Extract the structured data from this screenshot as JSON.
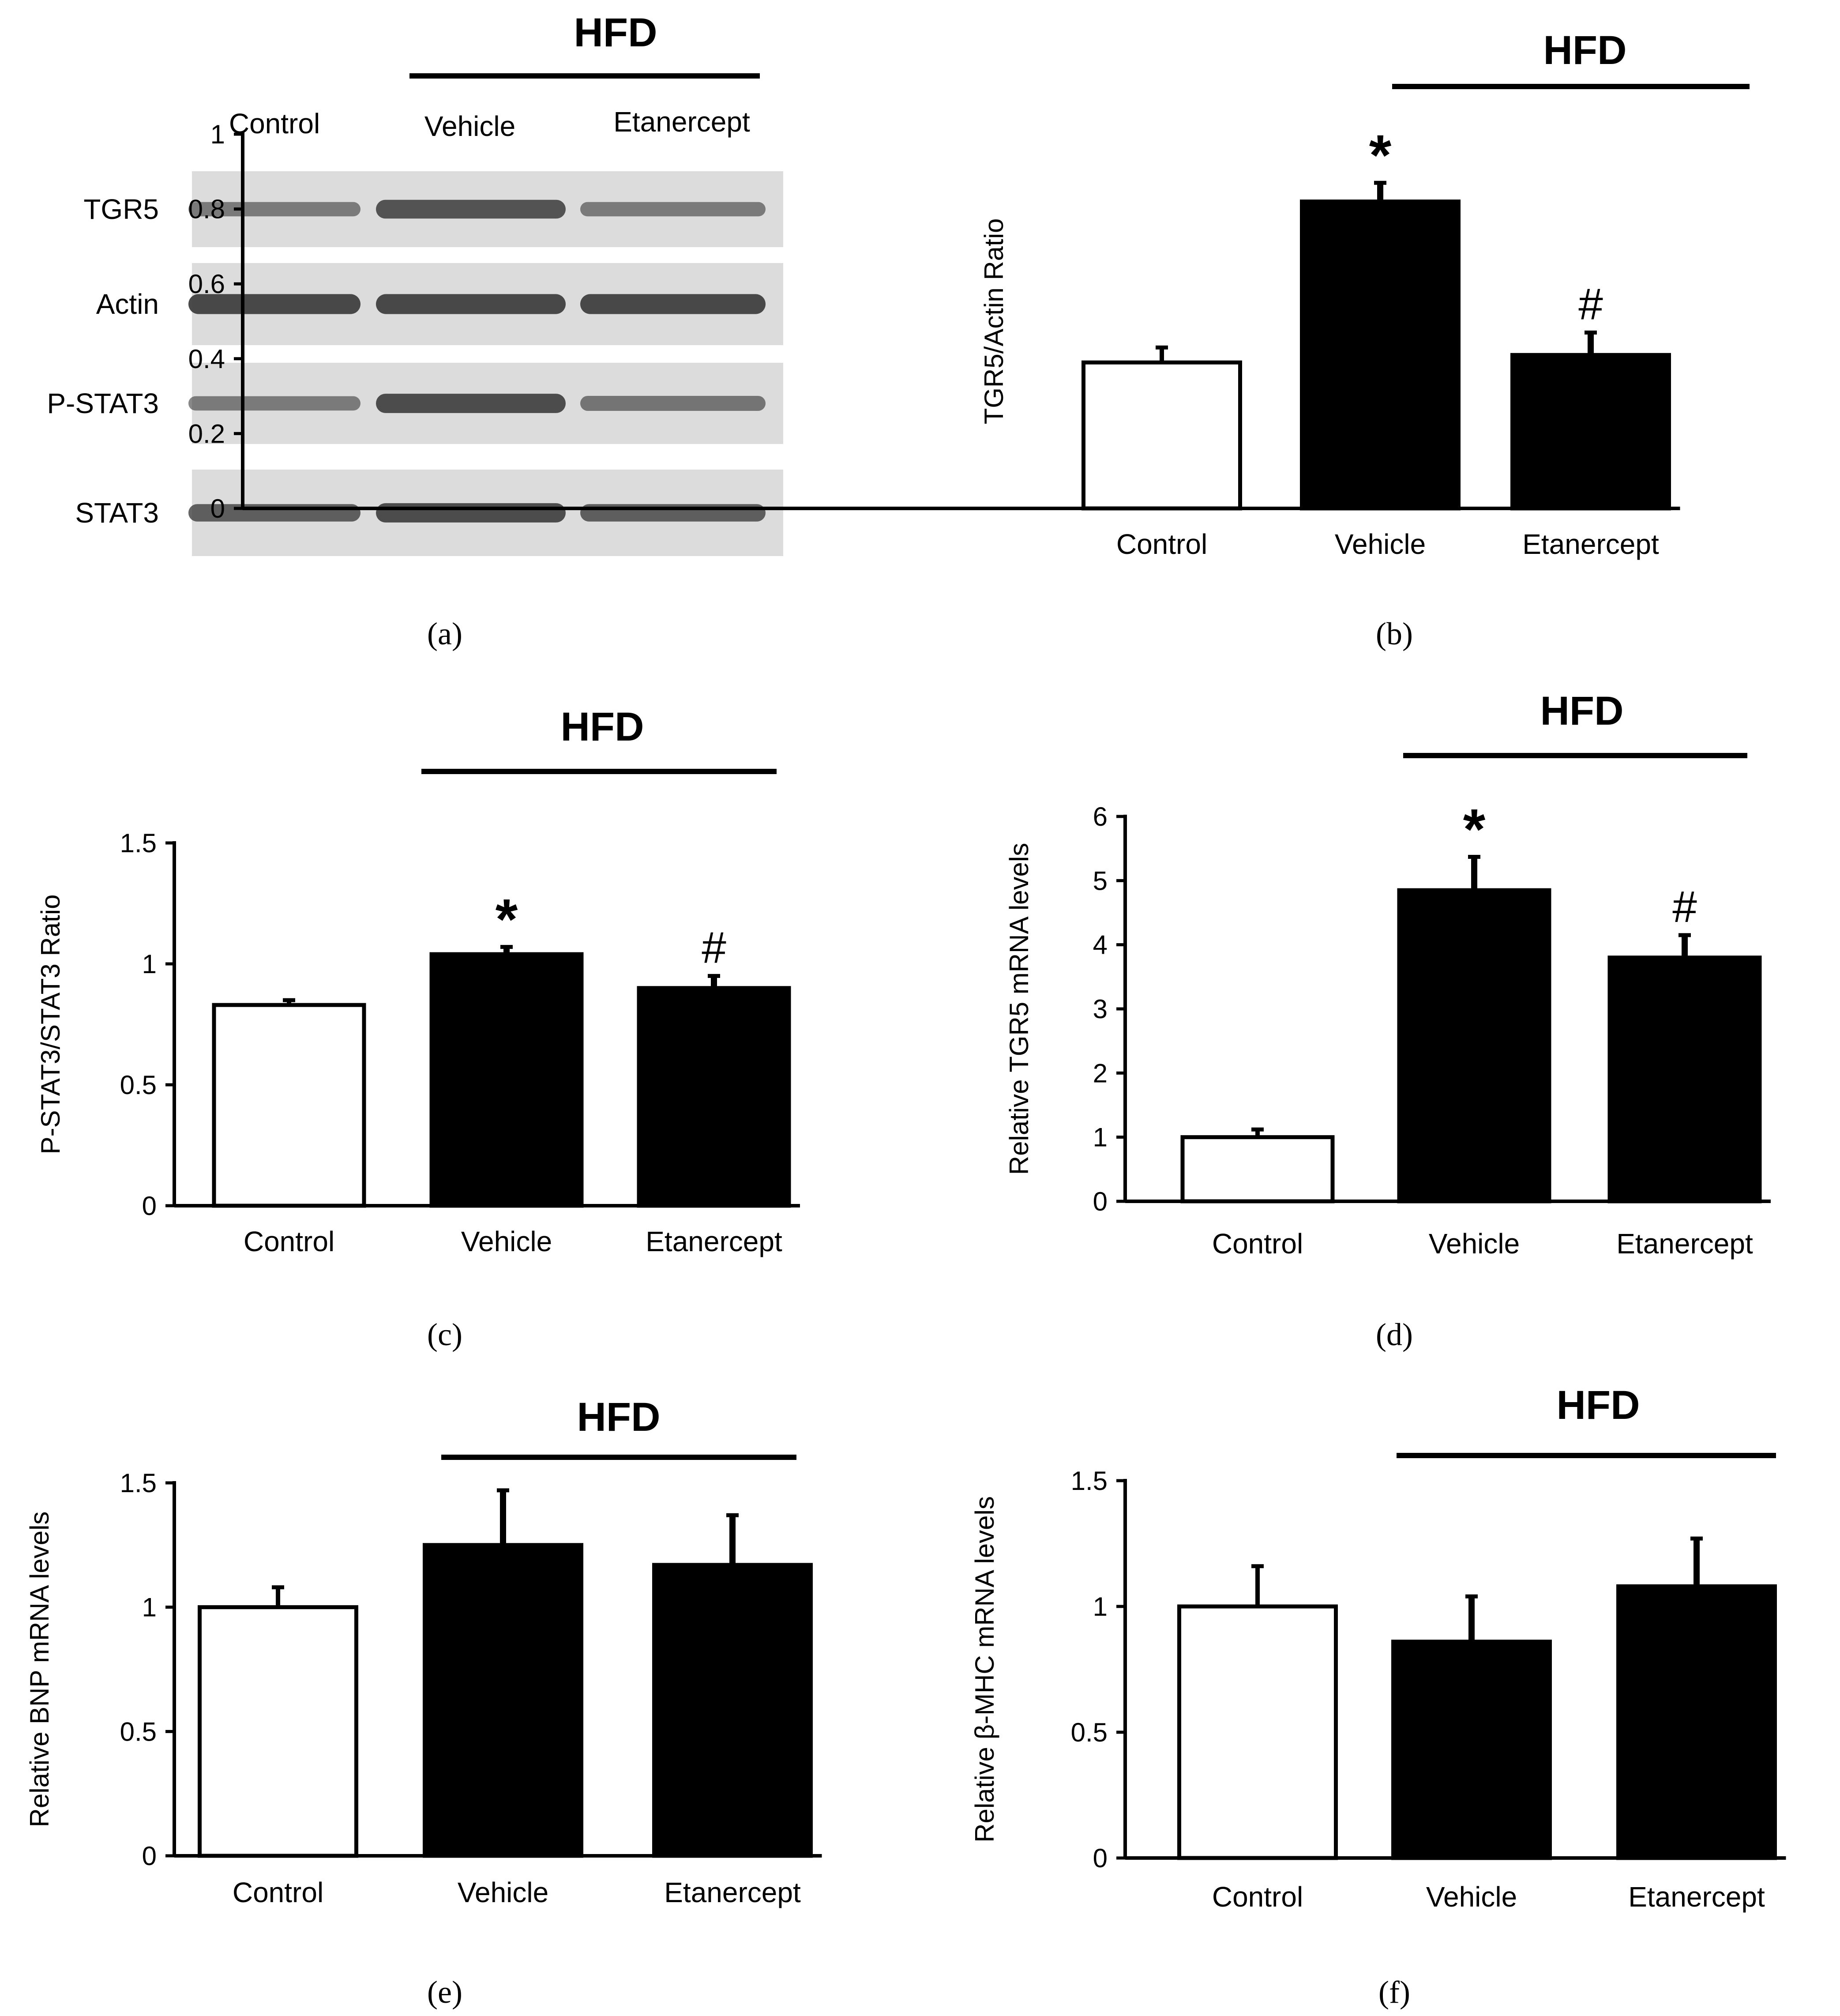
{
  "figure": {
    "panel_labels": [
      "(a)",
      "(b)",
      "(c)",
      "(d)",
      "(e)",
      "(f)"
    ],
    "colors": {
      "treated_bar": "#000000",
      "control_bar": "#ffffff",
      "band": "#3c3c3c",
      "blot_bg": "#dcdcdc"
    }
  },
  "blot": {
    "group_label": "HFD",
    "columns": [
      "Control",
      "Vehicle",
      "Etanercept"
    ],
    "rows": [
      {
        "label": "TGR5",
        "intensity": [
          0.45,
          0.8,
          0.45
        ]
      },
      {
        "label": "Actin",
        "intensity": [
          0.9,
          0.9,
          0.9
        ]
      },
      {
        "label": "P-STAT3",
        "intensity": [
          0.45,
          0.85,
          0.5
        ]
      },
      {
        "label": "STAT3",
        "intensity": [
          0.7,
          0.85,
          0.7
        ]
      }
    ]
  },
  "chart_data": [
    {
      "panel": "b",
      "type": "bar",
      "group_label": "HFD",
      "categories": [
        "Control",
        "Vehicle",
        "Etanercept"
      ],
      "values": [
        0.39,
        0.82,
        0.41
      ],
      "errors": [
        0.04,
        0.05,
        0.06
      ],
      "markers": [
        "",
        "*",
        "#"
      ],
      "bar_fill": [
        "#ffffff",
        "#000000",
        "#000000"
      ],
      "ylabel": "TGR5/Actin Ratio",
      "ylim": [
        0,
        1
      ],
      "yticks": [
        0,
        0.2,
        0.4,
        0.6,
        0.8,
        1
      ]
    },
    {
      "panel": "c",
      "type": "bar",
      "group_label": "HFD",
      "categories": [
        "Control",
        "Vehicle",
        "Etanercept"
      ],
      "values": [
        0.83,
        1.04,
        0.9
      ],
      "errors": [
        0.02,
        0.03,
        0.05
      ],
      "markers": [
        "",
        "*",
        "#"
      ],
      "bar_fill": [
        "#ffffff",
        "#000000",
        "#000000"
      ],
      "ylabel": "P-STAT3/STAT3 Ratio",
      "ylim": [
        0,
        1.5
      ],
      "yticks": [
        0,
        0.5,
        1,
        1.5
      ]
    },
    {
      "panel": "d",
      "type": "bar",
      "group_label": "HFD",
      "categories": [
        "Control",
        "Vehicle",
        "Etanercept"
      ],
      "values": [
        1.0,
        4.85,
        3.8
      ],
      "errors": [
        0.12,
        0.52,
        0.35
      ],
      "markers": [
        "",
        "*",
        "#"
      ],
      "bar_fill": [
        "#ffffff",
        "#000000",
        "#000000"
      ],
      "ylabel": "Relative TGR5 mRNA levels",
      "ylim": [
        0,
        6
      ],
      "yticks": [
        0,
        1,
        2,
        3,
        4,
        5,
        6
      ]
    },
    {
      "panel": "e",
      "type": "bar",
      "group_label": "HFD",
      "categories": [
        "Control",
        "Vehicle",
        "Etanercept"
      ],
      "values": [
        1.0,
        1.25,
        1.17
      ],
      "errors": [
        0.08,
        0.22,
        0.2
      ],
      "markers": [
        "",
        "",
        ""
      ],
      "bar_fill": [
        "#ffffff",
        "#000000",
        "#000000"
      ],
      "ylabel": "Relative BNP mRNA levels",
      "ylim": [
        0,
        1.5
      ],
      "yticks": [
        0,
        0.5,
        1,
        1.5
      ]
    },
    {
      "panel": "f",
      "type": "bar",
      "group_label": "HFD",
      "categories": [
        "Control",
        "Vehicle",
        "Etanercept"
      ],
      "values": [
        1.0,
        0.86,
        1.08
      ],
      "errors": [
        0.16,
        0.18,
        0.19
      ],
      "markers": [
        "",
        "",
        ""
      ],
      "bar_fill": [
        "#ffffff",
        "#000000",
        "#000000"
      ],
      "ylabel": "Relative β-MHC mRNA levels",
      "ylim": [
        0,
        1.5
      ],
      "yticks": [
        0,
        0.5,
        1,
        1.5
      ]
    }
  ]
}
